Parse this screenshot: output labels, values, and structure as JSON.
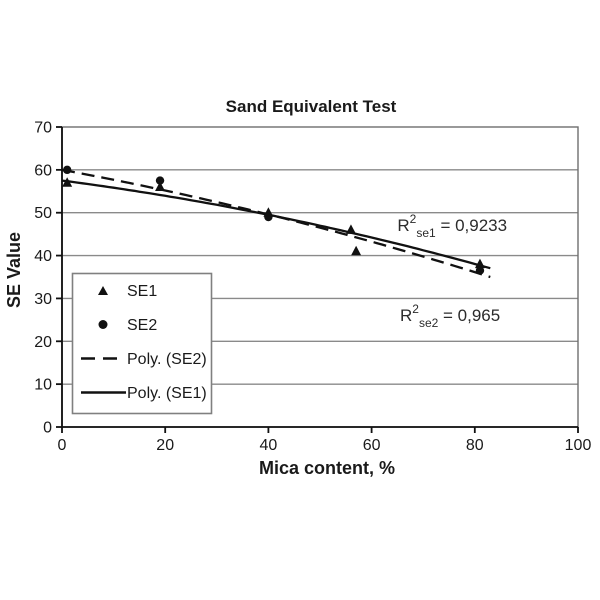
{
  "chart_data": {
    "type": "scatter",
    "title": "Sand Equivalent Test",
    "xlabel": "Mica content, %",
    "ylabel": "SE Value",
    "xlim": [
      0,
      100
    ],
    "ylim": [
      0,
      70
    ],
    "x_ticks": [
      0,
      20,
      40,
      60,
      80,
      100
    ],
    "y_ticks": [
      0,
      10,
      20,
      30,
      40,
      50,
      60,
      70
    ],
    "grid": "horizontal-only",
    "legend_position": "inside-bottom-left",
    "colors": {
      "ink": "#111111",
      "gridline": "#8a8a8a",
      "border": "#6e6e6e"
    },
    "series": [
      {
        "name": "SE1",
        "marker": "triangle",
        "points": [
          [
            1,
            57
          ],
          [
            19,
            56
          ],
          [
            40,
            50
          ],
          [
            56,
            46
          ],
          [
            57,
            41
          ],
          [
            81,
            38
          ]
        ]
      },
      {
        "name": "SE2",
        "marker": "circle",
        "points": [
          [
            1,
            60
          ],
          [
            19,
            57.5
          ],
          [
            40,
            49
          ],
          [
            81,
            36.5
          ]
        ]
      }
    ],
    "trendlines": [
      {
        "name": "Poly. (SE2)",
        "style": "dashed",
        "poly_coeffs": [
          60,
          -0.2217,
          -0.000958
        ],
        "x_range": [
          0,
          83
        ]
      },
      {
        "name": "Poly. (SE1)",
        "style": "solid",
        "poly_coeffs": [
          57.5,
          -0.156,
          -0.00109
        ],
        "x_range": [
          0,
          83
        ]
      }
    ],
    "annotations": [
      {
        "base": "R",
        "sup": "2",
        "sub": "se1",
        "rest": " = 0,9233",
        "x": 65,
        "y": 45.7
      },
      {
        "base": "R",
        "sup": "2",
        "sub": "se2",
        "rest": " = 0,965",
        "x": 65.5,
        "y": 24.7
      }
    ],
    "legend": {
      "items": [
        {
          "symbol": "triangle",
          "label": "SE1"
        },
        {
          "symbol": "circle",
          "label": "SE2"
        },
        {
          "symbol": "dashed-line",
          "label": "Poly. (SE2)"
        },
        {
          "symbol": "solid-line",
          "label": "Poly. (SE1)"
        }
      ]
    }
  }
}
